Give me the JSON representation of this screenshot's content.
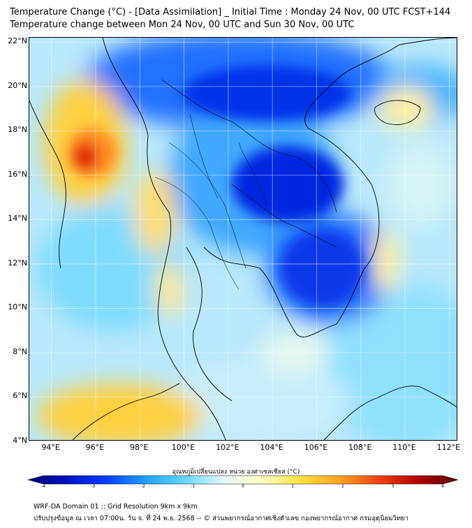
{
  "header": {
    "title_line1": "Temperature Change (°C) - [Data Assimilation] _ Initial Time : Monday 24 Nov, 00 UTC FCST+144",
    "title_line2": "Temperature change between Mon 24 Nov, 00 UTC and Sun 30 Nov, 00 UTC"
  },
  "map": {
    "lat_labels": [
      "22°N",
      "20°N",
      "18°N",
      "16°N",
      "14°N",
      "12°N",
      "10°N",
      "8°N",
      "6°N",
      "4°N"
    ],
    "lon_labels": [
      "94°E",
      "96°E",
      "98°E",
      "100°E",
      "102°E",
      "104°E",
      "106°E",
      "108°E",
      "110°E",
      "112°E"
    ],
    "lat_range": [
      4,
      22.2
    ],
    "lon_range": [
      93,
      112.4
    ],
    "colors": {
      "warm_max": "#e02010",
      "warm": "#ffcc40",
      "neutral": "#d8f0f8",
      "cool": "#60d0ff",
      "cold": "#1030e0",
      "cold_max": "#0018d0"
    }
  },
  "colorbar": {
    "title": "อุณหภูมิเปลี่ยนแปลง หน่วย องศาเซลเซียส (°C)",
    "ticks": [
      "-4",
      "-3",
      "-2",
      "-1",
      "0",
      "1",
      "2",
      "3",
      "4"
    ],
    "min": -4,
    "max": 4,
    "stops": [
      "#000070",
      "#0010c0",
      "#0040ff",
      "#20a0ff",
      "#60d8ff",
      "#e8f8ff",
      "#ffffc0",
      "#ffe040",
      "#ffa020",
      "#f04010",
      "#b00000",
      "#600000"
    ]
  },
  "footer": {
    "line1": "WRF-DA Domain 01 :: Grid Resolution 9km x 9km",
    "line2": "ปรับปรุงข้อมูล ณ เวลา 07:00น. วัน จ. ที่ 24 พ.ย. 2568 -- © ส่วนพยากรณ์อากาศเชิงตัวเลข กองพยากรณ์อากาศ กรมอุตุนิยมวิทยา"
  }
}
